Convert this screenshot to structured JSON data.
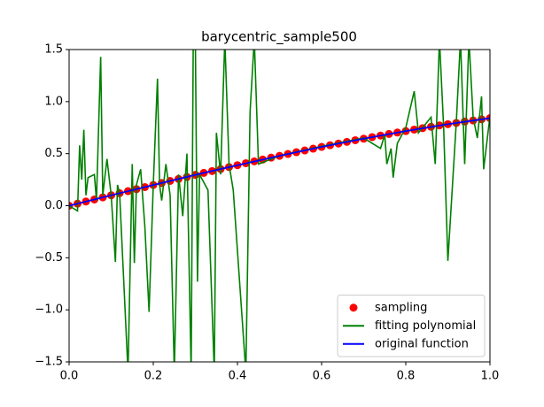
{
  "chart_data": {
    "type": "line",
    "title": "barycentric_sample500",
    "xlim": [
      0,
      1
    ],
    "ylim": [
      -1.5,
      1.5
    ],
    "xticks": [
      {
        "value": 0,
        "label": "0.0"
      },
      0.2,
      0.4,
      0.6,
      0.8,
      {
        "value": 1,
        "label": "1.0"
      }
    ],
    "yticks": [
      {
        "value": -1.5,
        "label": "−1.5"
      },
      {
        "value": -1,
        "label": "−1.0"
      },
      {
        "value": -0.5,
        "label": "−0.5"
      },
      {
        "value": 0,
        "label": "0.0"
      },
      0.5,
      {
        "value": 1,
        "label": "1.0"
      },
      1.5
    ],
    "grid": false,
    "legend": "lower right",
    "series": [
      {
        "name": "sampling",
        "color": "#ff0000",
        "style": "marker",
        "x": [
          0,
          0.02,
          0.04,
          0.06,
          0.08,
          0.1,
          0.12,
          0.14,
          0.16,
          0.18,
          0.2,
          0.22,
          0.24,
          0.26,
          0.28,
          0.3,
          0.32,
          0.34,
          0.36,
          0.38,
          0.4,
          0.42,
          0.44,
          0.46,
          0.48,
          0.5,
          0.52,
          0.54,
          0.56,
          0.58,
          0.6,
          0.62,
          0.64,
          0.66,
          0.68,
          0.7,
          0.72,
          0.74,
          0.76,
          0.78,
          0.8,
          0.82,
          0.84,
          0.86,
          0.88,
          0.9,
          0.92,
          0.94,
          0.96,
          0.98,
          1
        ],
        "values": [
          0,
          0.02,
          0.04,
          0.06,
          0.08,
          0.1,
          0.12,
          0.14,
          0.159,
          0.179,
          0.199,
          0.218,
          0.238,
          0.257,
          0.276,
          0.296,
          0.315,
          0.333,
          0.352,
          0.371,
          0.389,
          0.408,
          0.426,
          0.444,
          0.462,
          0.479,
          0.497,
          0.514,
          0.531,
          0.548,
          0.565,
          0.581,
          0.597,
          0.613,
          0.629,
          0.644,
          0.659,
          0.674,
          0.689,
          0.703,
          0.717,
          0.731,
          0.745,
          0.758,
          0.771,
          0.783,
          0.795,
          0.808,
          0.819,
          0.83,
          0.841
        ]
      },
      {
        "name": "fitting polynomial",
        "color": "#008000",
        "style": "line",
        "x": [
          0,
          0.02,
          0.025,
          0.03,
          0.035,
          0.04,
          0.045,
          0.06,
          0.065,
          0.075,
          0.08,
          0.09,
          0.1,
          0.11,
          0.115,
          0.12,
          0.14,
          0.15,
          0.155,
          0.16,
          0.17,
          0.18,
          0.19,
          0.2,
          0.21,
          0.215,
          0.22,
          0.23,
          0.24,
          0.25,
          0.26,
          0.27,
          0.28,
          0.29,
          0.295,
          0.3,
          0.305,
          0.31,
          0.33,
          0.345,
          0.35,
          0.36,
          0.37,
          0.38,
          0.39,
          0.42,
          0.43,
          0.44,
          0.45,
          0.5,
          0.6,
          0.7,
          0.74,
          0.75,
          0.755,
          0.765,
          0.77,
          0.78,
          0.8,
          0.82,
          0.83,
          0.86,
          0.87,
          0.88,
          0.89,
          0.9,
          0.92,
          0.93,
          0.94,
          0.95,
          0.96,
          0.97,
          0.98,
          0.985,
          1
        ],
        "values": [
          0,
          -0.05,
          0.58,
          0.25,
          0.73,
          0.1,
          0.27,
          0.3,
          0.05,
          1.43,
          0.1,
          0.45,
          0.1,
          -0.54,
          0.2,
          0.12,
          -1.6,
          0.4,
          -0.55,
          0.2,
          0.35,
          -0.2,
          -1.02,
          0.2,
          1.22,
          0.2,
          0.05,
          0.4,
          0.1,
          -1.6,
          0.3,
          -0.1,
          0.5,
          -1.6,
          1.6,
          1.6,
          -0.73,
          0.3,
          0.15,
          -1.6,
          0.7,
          0.3,
          1.6,
          0.4,
          0.15,
          -1.6,
          0.9,
          1.6,
          0.4,
          0.48,
          0.57,
          0.65,
          0.55,
          0.68,
          0.4,
          0.55,
          0.27,
          0.6,
          0.75,
          1.1,
          0.7,
          0.85,
          0.4,
          1.6,
          0.75,
          -0.53,
          0.8,
          1.6,
          0.4,
          1.6,
          0.85,
          0.65,
          1.05,
          0.35,
          0.86
        ]
      },
      {
        "name": "original function",
        "color": "#0000ff",
        "style": "line",
        "x": [
          0,
          0.1,
          0.2,
          0.3,
          0.4,
          0.5,
          0.6,
          0.7,
          0.8,
          0.9,
          1
        ],
        "values": [
          0,
          0.1,
          0.199,
          0.296,
          0.389,
          0.479,
          0.565,
          0.644,
          0.717,
          0.783,
          0.841
        ]
      }
    ]
  }
}
